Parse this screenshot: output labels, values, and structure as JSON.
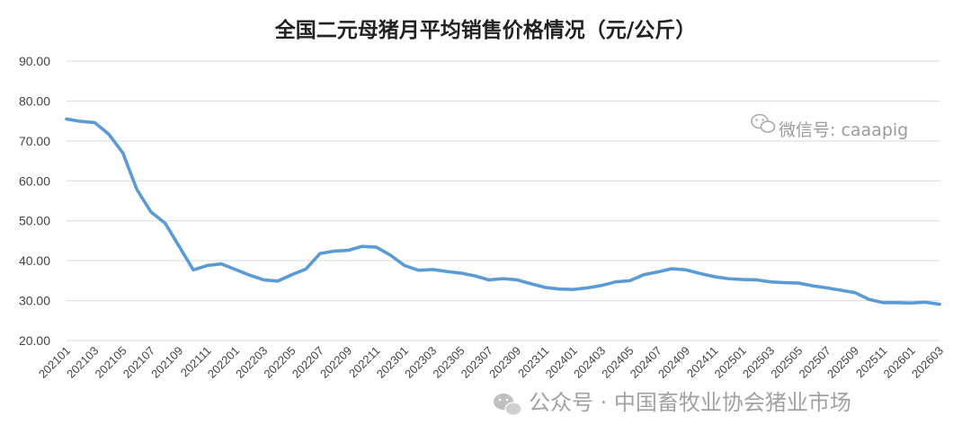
{
  "chart_data": {
    "type": "line",
    "title": "全国二元母猪月平均销售价格情况（元/公斤）",
    "xlabel": "",
    "ylabel": "",
    "ylim": [
      20,
      90
    ],
    "yticks": [
      "20.00",
      "30.00",
      "40.00",
      "50.00",
      "60.00",
      "70.00",
      "80.00",
      "90.00"
    ],
    "grid": true,
    "legend": "none",
    "line_color": "#5b9bd5",
    "x_tick_labels": [
      "202101",
      "202103",
      "202105",
      "202107",
      "202109",
      "202111",
      "202201",
      "202203",
      "202205",
      "202207",
      "202209",
      "202211",
      "202301",
      "202303",
      "202305",
      "202307",
      "202309",
      "202311",
      "202401",
      "202403",
      "202405",
      "202407",
      "202409",
      "202411",
      "202501",
      "202503",
      "202505",
      "202507",
      "202509",
      "202511",
      "202601",
      "202603"
    ],
    "x": [
      "202101",
      "202102",
      "202103",
      "202104",
      "202105",
      "202106",
      "202107",
      "202108",
      "202109",
      "202110",
      "202111",
      "202112",
      "202201",
      "202202",
      "202203",
      "202204",
      "202205",
      "202206",
      "202207",
      "202208",
      "202209",
      "202210",
      "202211",
      "202212",
      "202301",
      "202302",
      "202303",
      "202304",
      "202305",
      "202306",
      "202307",
      "202308",
      "202309",
      "202310",
      "202311",
      "202312",
      "202401",
      "202402",
      "202403",
      "202404",
      "202405",
      "202406",
      "202407",
      "202408",
      "202409",
      "202410",
      "202411",
      "202412",
      "202501",
      "202502",
      "202503",
      "202504",
      "202505",
      "202506",
      "202507",
      "202508",
      "202509",
      "202510",
      "202511",
      "202512",
      "202601",
      "202602",
      "202603"
    ],
    "series": [
      {
        "name": "",
        "values": [
          75.5,
          74.9,
          74.6,
          71.7,
          67.0,
          57.8,
          52.2,
          49.4,
          43.6,
          37.7,
          38.8,
          39.2,
          37.8,
          36.4,
          35.2,
          34.9,
          36.5,
          37.9,
          41.8,
          42.4,
          42.6,
          43.6,
          43.4,
          41.4,
          38.8,
          37.6,
          37.8,
          37.3,
          36.9,
          36.2,
          35.2,
          35.5,
          35.2,
          34.2,
          33.3,
          32.9,
          32.8,
          33.2,
          33.8,
          34.7,
          35.0,
          36.5,
          37.2,
          38.0,
          37.7,
          36.8,
          36.0,
          35.5,
          35.3,
          35.2,
          34.7,
          34.5,
          34.4,
          33.7,
          33.2,
          32.6,
          32.0,
          30.3,
          29.5,
          29.5,
          29.4,
          29.6,
          29.1
        ]
      }
    ]
  },
  "watermarks": {
    "wechat_id": "微信号: caaapig",
    "wechat_icon": "wechat-icon",
    "official_account": "公众号 · 中国畜牧业协会猪业市场"
  }
}
